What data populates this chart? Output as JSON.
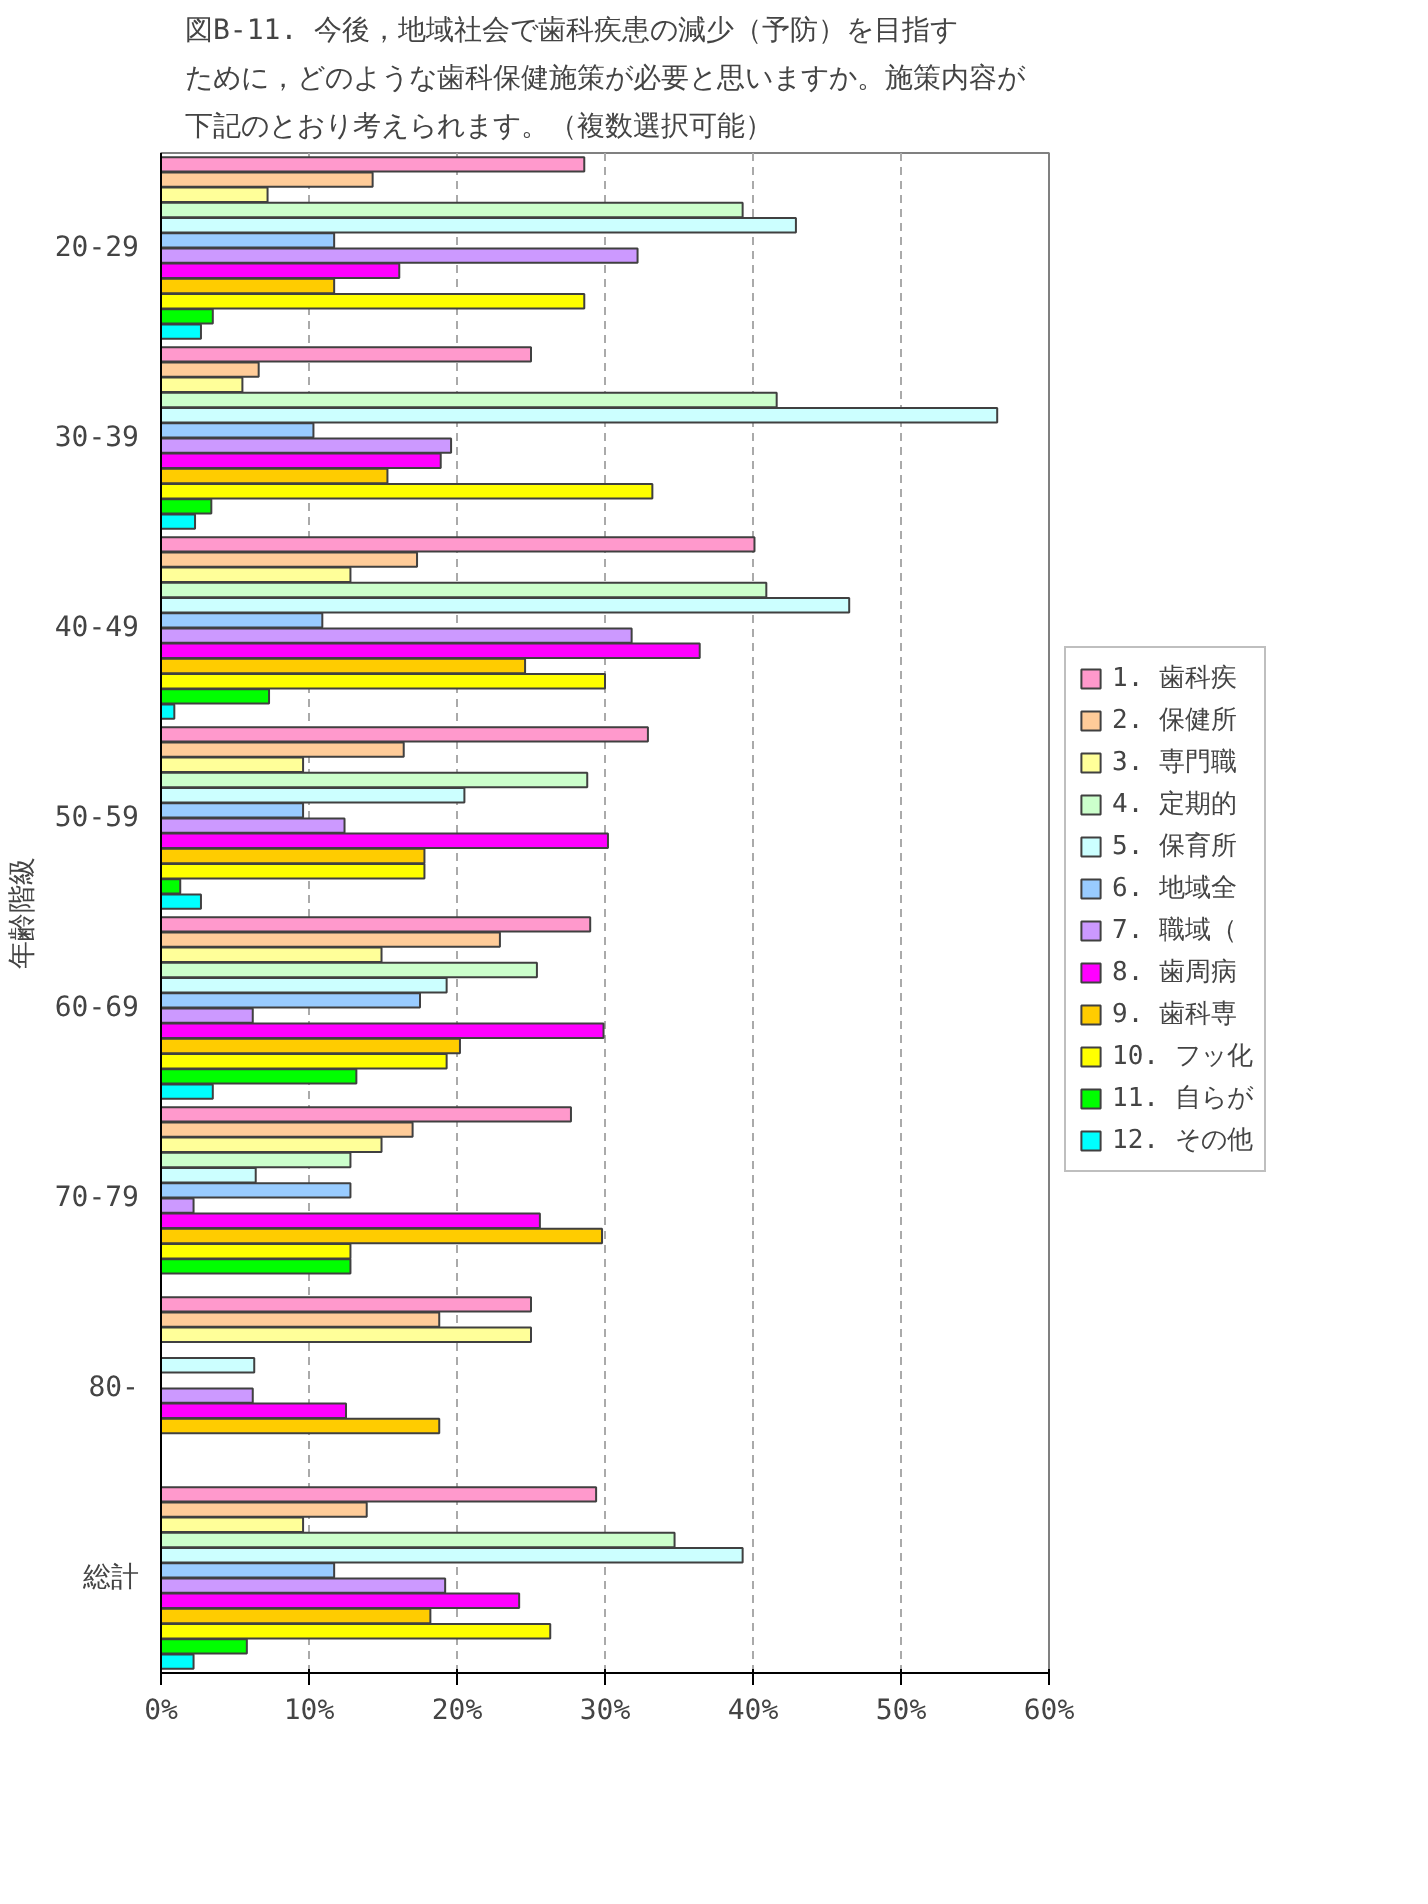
{
  "chart_data": {
    "type": "bar",
    "orientation": "horizontal",
    "title": "図B-11. 今後，地域社会で歯科疾患の減少（予防）を目指すために，どのような歯科保健施策が必要と思いますか。施策内容が下記のとおり考えられます。（複数選択可能）",
    "ylabel": "年齢階級",
    "categories": [
      "20-29",
      "30-39",
      "40-49",
      "50-59",
      "60-69",
      "70-79",
      "80-",
      "総計"
    ],
    "xlim": [
      0,
      60
    ],
    "xticks": [
      {
        "value": 0,
        "label": "0%"
      },
      {
        "value": 10,
        "label": "10%"
      },
      {
        "value": 20,
        "label": "20%"
      },
      {
        "value": 30,
        "label": "30%"
      },
      {
        "value": 40,
        "label": "40%"
      },
      {
        "value": 50,
        "label": "50%"
      },
      {
        "value": 60,
        "label": "60%"
      }
    ],
    "grid": "x",
    "legend": "right",
    "series": [
      {
        "name": "1. 歯科疾",
        "color": "#ff99cc",
        "values": [
          28.6,
          25.0,
          40.1,
          32.9,
          29.0,
          27.7,
          25.0,
          29.4
        ]
      },
      {
        "name": "2. 保健所",
        "color": "#ffcc99",
        "values": [
          14.3,
          6.6,
          17.3,
          16.4,
          22.9,
          17.0,
          18.8,
          13.9
        ]
      },
      {
        "name": "3. 専門職",
        "color": "#ffff99",
        "values": [
          7.2,
          5.5,
          12.8,
          9.6,
          14.9,
          14.9,
          25.0,
          9.6
        ]
      },
      {
        "name": "4. 定期的",
        "color": "#ccffcc",
        "values": [
          39.3,
          41.6,
          40.9,
          28.8,
          25.4,
          12.8,
          null,
          34.7
        ]
      },
      {
        "name": "5. 保育所",
        "color": "#ccffff",
        "values": [
          42.9,
          56.5,
          46.5,
          20.5,
          19.3,
          6.4,
          6.3,
          39.3
        ]
      },
      {
        "name": "6. 地域全",
        "color": "#99ccff",
        "values": [
          11.7,
          10.3,
          10.9,
          9.6,
          17.5,
          12.8,
          null,
          11.7
        ]
      },
      {
        "name": "7. 職域（",
        "color": "#cc99ff",
        "values": [
          32.2,
          19.6,
          31.8,
          12.4,
          6.2,
          2.2,
          6.2,
          19.2
        ]
      },
      {
        "name": "8. 歯周病",
        "color": "#ff00ff",
        "values": [
          16.1,
          18.9,
          36.4,
          30.2,
          29.9,
          25.6,
          12.5,
          24.2
        ]
      },
      {
        "name": "9. 歯科専",
        "color": "#ffcc00",
        "values": [
          11.7,
          15.3,
          24.6,
          17.8,
          20.2,
          29.8,
          18.8,
          18.2
        ]
      },
      {
        "name": "10. フッ化",
        "color": "#ffff00",
        "values": [
          28.6,
          33.2,
          30.0,
          17.8,
          19.3,
          12.8,
          null,
          26.3
        ]
      },
      {
        "name": "11. 自らが",
        "color": "#00ff00",
        "values": [
          3.5,
          3.4,
          7.3,
          1.3,
          13.2,
          12.8,
          null,
          5.8
        ]
      },
      {
        "name": "12. その他",
        "color": "#00ffff",
        "values": [
          2.7,
          2.3,
          0.9,
          2.7,
          3.5,
          null,
          null,
          2.2
        ]
      }
    ]
  }
}
